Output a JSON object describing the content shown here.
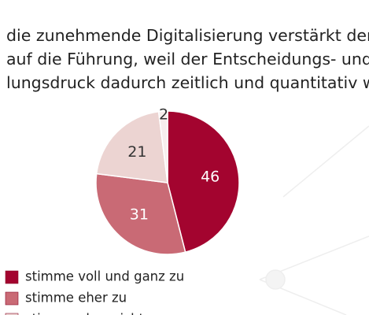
{
  "chart_data": {
    "type": "pie",
    "title": [
      "die zunehmende Digitalisierung verstärkt den Druck",
      "auf die Führung, weil der Entscheidungs- und Hand-",
      "lungsdruck dadurch zeitlich und quantitativ wächst"
    ],
    "categories": [
      "stimme voll und ganz zu",
      "stimme eher zu",
      "stimme eher nicht zu",
      null
    ],
    "values": [
      46,
      31,
      21,
      2
    ],
    "colors": [
      "#a3042f",
      "#c96a75",
      "#ecd4d2",
      "#f7eded"
    ]
  }
}
